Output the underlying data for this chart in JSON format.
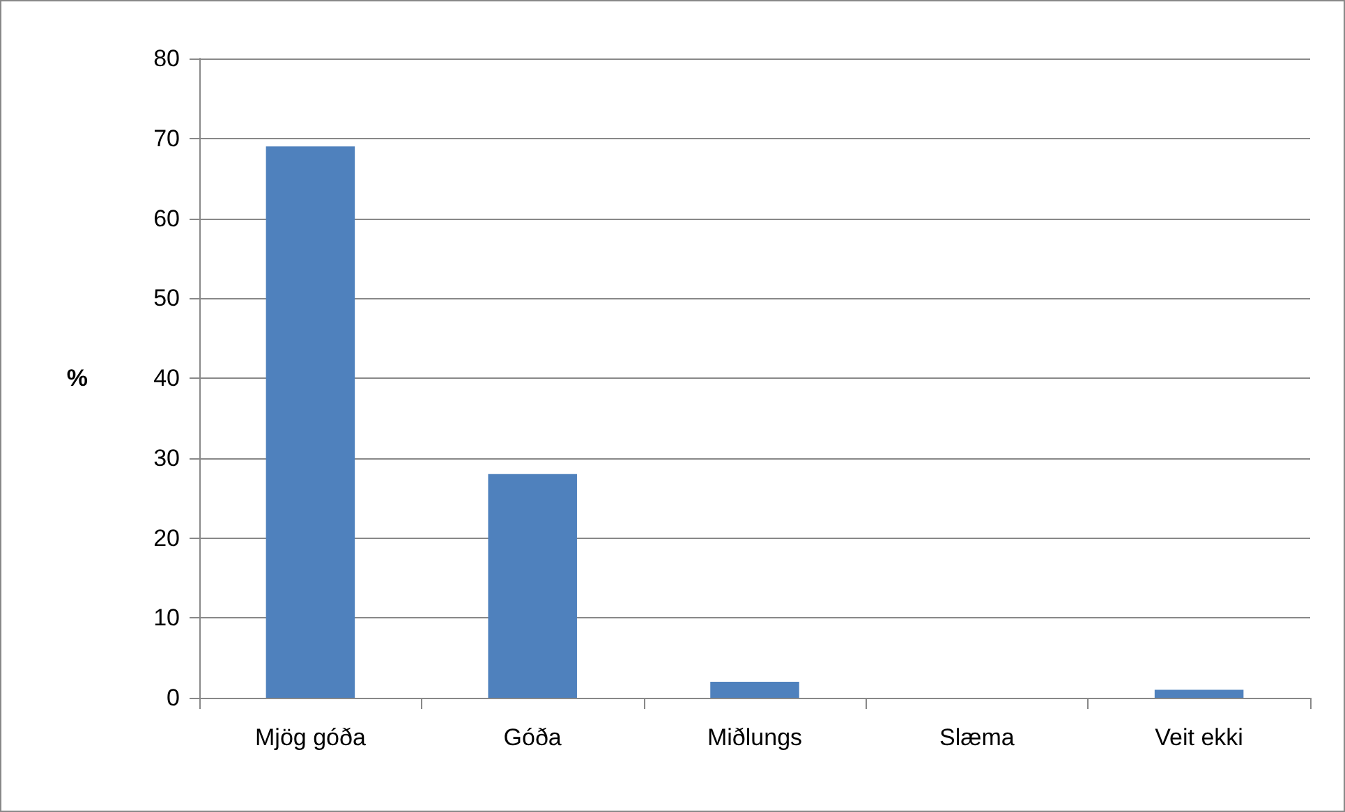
{
  "chart_data": {
    "type": "bar",
    "ylabel": "%",
    "categories": [
      "Mjög góða",
      "Góða",
      "Miðlungs",
      "Slæma",
      "Veit ekki"
    ],
    "values": [
      69,
      28,
      2,
      0,
      1
    ],
    "color": "#4f81bd",
    "ylim": [
      0,
      80
    ],
    "yticks": [
      0,
      10,
      20,
      30,
      40,
      50,
      60,
      70,
      80
    ],
    "grid": "y"
  }
}
